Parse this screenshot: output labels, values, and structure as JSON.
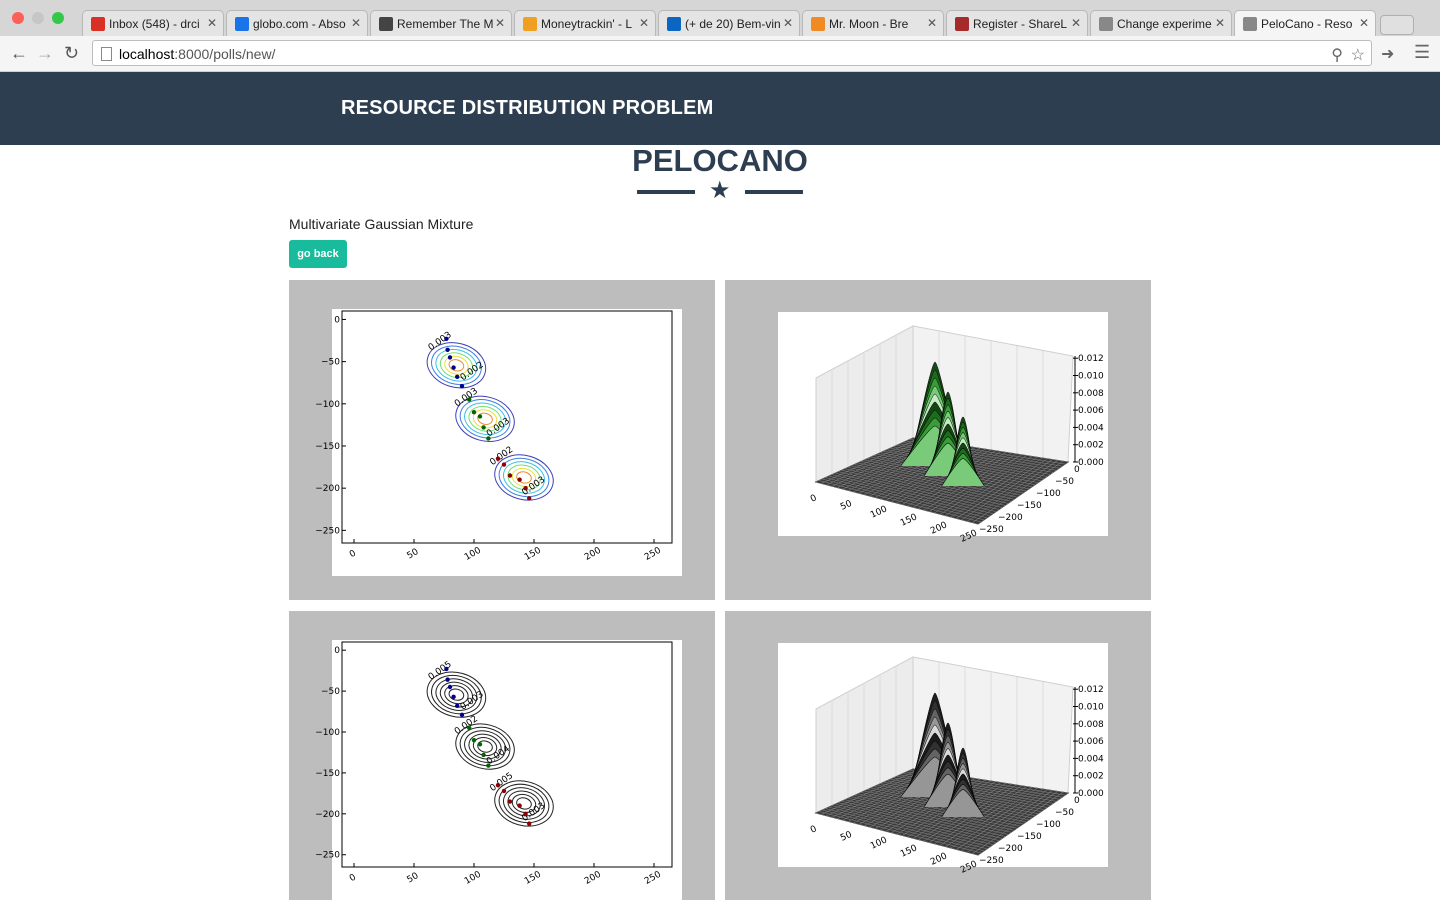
{
  "browser": {
    "tabs": [
      {
        "label": "Inbox (548) - drci",
        "icon": "gmail-icon",
        "color": "#d93025"
      },
      {
        "label": "globo.com - Abso",
        "icon": "globo-icon",
        "color": "#1a73e8"
      },
      {
        "label": "Remember The M",
        "icon": "rtm-icon",
        "color": "#444444"
      },
      {
        "label": "Moneytrackin' - L",
        "icon": "moneytrackin-icon",
        "color": "#f0a020"
      },
      {
        "label": "(+ de 20) Bem-vin",
        "icon": "linkedin-icon",
        "color": "#0a66c2"
      },
      {
        "label": "Mr. Moon - Bre",
        "icon": "audio-site-icon",
        "color": "#f08a24"
      },
      {
        "label": "Register - ShareL",
        "icon": "sharelatex-icon",
        "color": "#a52a2a"
      },
      {
        "label": "Change experime",
        "icon": "page-icon",
        "color": "#888888"
      },
      {
        "label": "PeloCano - Reso",
        "icon": "page-icon",
        "color": "#888888"
      }
    ],
    "url_host": "localhost",
    "url_path": ":8000/polls/new/"
  },
  "navbar": {
    "brand": "RESOURCE DISTRIBUTION PROBLEM"
  },
  "page": {
    "title": "PELOCANO",
    "subtitle": "Multivariate Gaussian Mixture",
    "back_button": "go back"
  },
  "chart_data": [
    {
      "type": "scatter",
      "title": "",
      "x_ticks": [
        "0",
        "50",
        "100",
        "150",
        "200",
        "250"
      ],
      "y_ticks": [
        "0",
        "−50",
        "−100",
        "−150",
        "−200",
        "−250"
      ],
      "xlim": [
        -10,
        265
      ],
      "ylim": [
        -265,
        10
      ],
      "contour_labels": [
        "0.003",
        "0.002",
        "0.003",
        "0.003",
        "0.002",
        "0.003"
      ],
      "contour_colormap": "colored",
      "clusters": [
        {
          "color": "#00008b",
          "points": [
            [
              77,
              -23
            ],
            [
              78,
              -36
            ],
            [
              80,
              -45
            ],
            [
              83,
              -57
            ],
            [
              86,
              -68
            ],
            [
              90,
              -79
            ]
          ]
        },
        {
          "color": "#006400",
          "points": [
            [
              96,
              -95
            ],
            [
              100,
              -110
            ],
            [
              105,
              -115
            ],
            [
              108,
              -128
            ],
            [
              112,
              -141
            ]
          ]
        },
        {
          "color": "#8b0000",
          "points": [
            [
              120,
              -165
            ],
            [
              125,
              -172
            ],
            [
              130,
              -185
            ],
            [
              138,
              -190
            ],
            [
              143,
              -200
            ],
            [
              146,
              -212
            ]
          ]
        }
      ]
    },
    {
      "type": "surface",
      "x_ticks": [
        "0",
        "50",
        "100",
        "150",
        "200",
        "250"
      ],
      "y_ticks": [
        "0",
        "−50",
        "−100",
        "−150",
        "−200",
        "−250"
      ],
      "z_ticks": [
        "0.000",
        "0.002",
        "0.004",
        "0.006",
        "0.008",
        "0.010",
        "0.012"
      ],
      "colormap": "green"
    },
    {
      "type": "scatter",
      "title": "",
      "x_ticks": [
        "0",
        "50",
        "100",
        "150",
        "200",
        "250"
      ],
      "y_ticks": [
        "0",
        "−50",
        "−100",
        "−150",
        "−200",
        "−250"
      ],
      "xlim": [
        -10,
        265
      ],
      "ylim": [
        -265,
        10
      ],
      "contour_labels": [
        "0.005",
        "0.003",
        "0.002",
        "0.004",
        "0.005",
        "0.003"
      ],
      "contour_colormap": "black",
      "clusters": [
        {
          "color": "#00008b",
          "points": [
            [
              77,
              -23
            ],
            [
              78,
              -36
            ],
            [
              80,
              -45
            ],
            [
              83,
              -57
            ],
            [
              86,
              -68
            ],
            [
              90,
              -79
            ]
          ]
        },
        {
          "color": "#006400",
          "points": [
            [
              96,
              -95
            ],
            [
              100,
              -110
            ],
            [
              105,
              -115
            ],
            [
              108,
              -128
            ],
            [
              112,
              -141
            ]
          ]
        },
        {
          "color": "#8b0000",
          "points": [
            [
              120,
              -165
            ],
            [
              125,
              -172
            ],
            [
              130,
              -185
            ],
            [
              138,
              -190
            ],
            [
              143,
              -200
            ],
            [
              146,
              -212
            ]
          ]
        }
      ]
    },
    {
      "type": "surface",
      "x_ticks": [
        "0",
        "50",
        "100",
        "150",
        "200",
        "250"
      ],
      "y_ticks": [
        "0",
        "−50",
        "−100",
        "−150",
        "−200",
        "−250"
      ],
      "z_ticks": [
        "0.000",
        "0.002",
        "0.004",
        "0.006",
        "0.008",
        "0.010",
        "0.012"
      ],
      "colormap": "gray"
    }
  ]
}
